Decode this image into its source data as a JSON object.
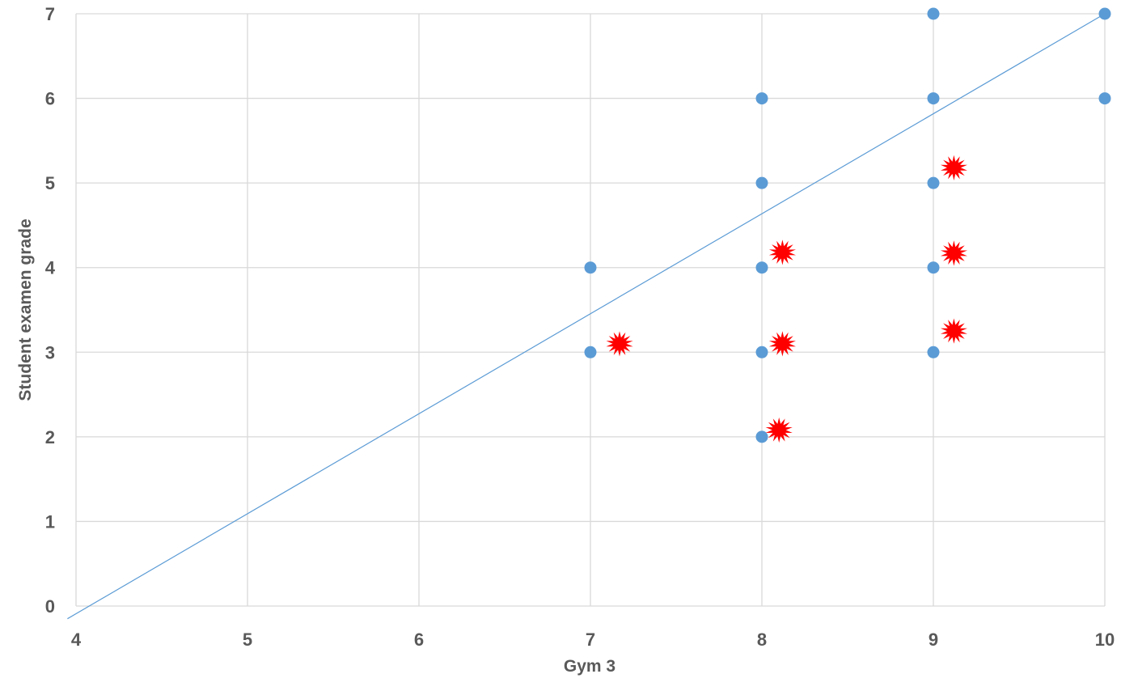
{
  "chart_data": {
    "type": "scatter",
    "title": "",
    "xlabel": "Gym 3",
    "ylabel": "Student  examen grade",
    "xlim": [
      4,
      10
    ],
    "ylim": [
      0,
      7
    ],
    "xticks": [
      "4",
      "5",
      "6",
      "7",
      "8",
      "9",
      "10"
    ],
    "yticks": [
      "0",
      "1",
      "2",
      "3",
      "4",
      "5",
      "6",
      "7"
    ],
    "grid": true,
    "legend": "none",
    "series": [
      {
        "color": "#5b9bd5",
        "points": [
          {
            "x": 7,
            "y": 4
          },
          {
            "x": 7,
            "y": 3
          },
          {
            "x": 8,
            "y": 6
          },
          {
            "x": 8,
            "y": 5
          },
          {
            "x": 8,
            "y": 4
          },
          {
            "x": 8,
            "y": 3
          },
          {
            "x": 8,
            "y": 2
          },
          {
            "x": 9,
            "y": 7
          },
          {
            "x": 9,
            "y": 6
          },
          {
            "x": 9,
            "y": 5
          },
          {
            "x": 9,
            "y": 4
          },
          {
            "x": 9,
            "y": 3
          },
          {
            "x": 10,
            "y": 7
          },
          {
            "x": 10,
            "y": 6
          }
        ]
      }
    ],
    "trendline": {
      "color": "#5b9bd5",
      "points": [
        {
          "x": 3.95,
          "y": -0.15
        },
        {
          "x": 10,
          "y": 7
        }
      ]
    },
    "annotations": {
      "type": "burst",
      "color": "#ff0000",
      "points": [
        {
          "x": 7.17,
          "y": 3.1
        },
        {
          "x": 8.12,
          "y": 4.18
        },
        {
          "x": 8.12,
          "y": 3.1
        },
        {
          "x": 8.1,
          "y": 2.08
        },
        {
          "x": 9.12,
          "y": 5.18
        },
        {
          "x": 9.12,
          "y": 4.17
        },
        {
          "x": 9.12,
          "y": 3.25
        }
      ]
    }
  }
}
